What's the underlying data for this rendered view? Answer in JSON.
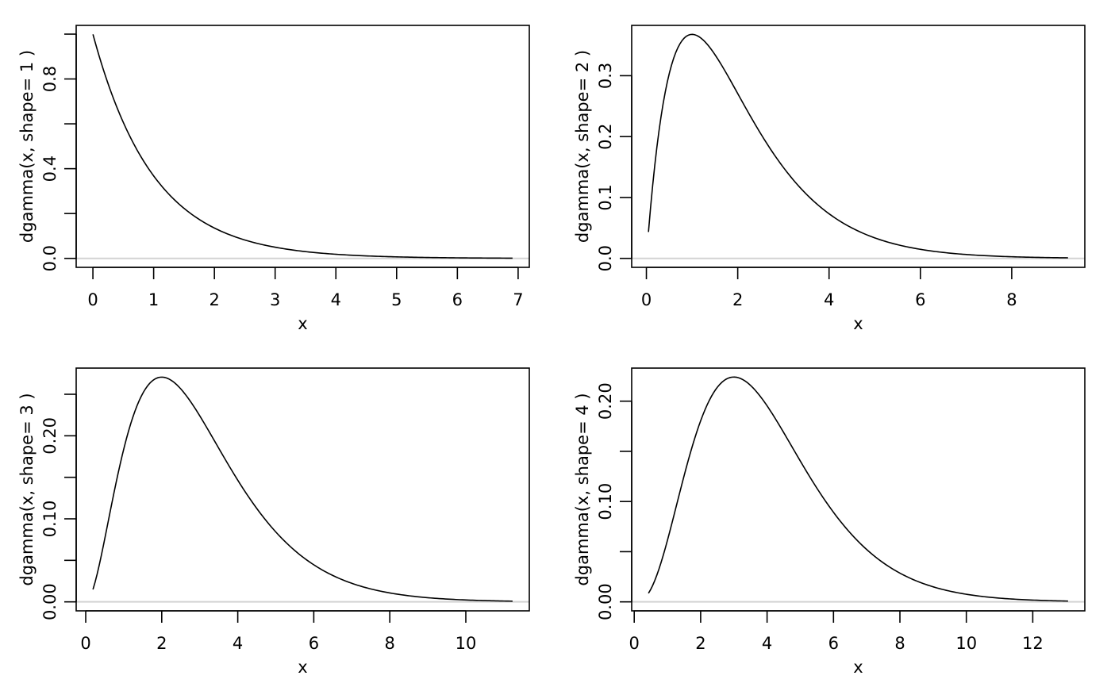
{
  "chart_data": [
    {
      "type": "line",
      "title": "",
      "xlabel": "x",
      "ylabel": "dgamma(x, shape= 1 )",
      "function": "gamma density",
      "shape": 1,
      "rate": 1,
      "x_range": [
        0.001,
        6.908
      ],
      "y_range": [
        0,
        0.999
      ],
      "x_ticks": [
        0,
        1,
        2,
        3,
        4,
        5,
        6,
        7
      ],
      "x_tick_labels": [
        "0",
        "1",
        "2",
        "3",
        "4",
        "5",
        "6",
        "7"
      ],
      "y_ticks": [
        0,
        0.2,
        0.4,
        0.6,
        0.8,
        1.0
      ],
      "y_tick_labels": [
        "0.0",
        "",
        "0.4",
        "",
        "0.8",
        ""
      ],
      "reference_line": {
        "y": 0,
        "color": "#d3d3d3"
      },
      "line_color": "#000000"
    },
    {
      "type": "line",
      "title": "",
      "xlabel": "x",
      "ylabel": "dgamma(x, shape= 2 )",
      "function": "gamma density",
      "shape": 2,
      "rate": 1,
      "x_range": [
        0.0454,
        9.233
      ],
      "y_range": [
        0,
        0.3679
      ],
      "x_ticks": [
        0,
        2,
        4,
        6,
        8
      ],
      "x_tick_labels": [
        "0",
        "2",
        "4",
        "6",
        "8"
      ],
      "y_ticks": [
        0,
        0.1,
        0.2,
        0.3
      ],
      "y_tick_labels": [
        "0.0",
        "0.1",
        "0.2",
        "0.3"
      ],
      "reference_line": {
        "y": 0,
        "color": "#d3d3d3"
      },
      "line_color": "#000000"
    },
    {
      "type": "line",
      "title": "",
      "xlabel": "x",
      "ylabel": "dgamma(x, shape= 3 )",
      "function": "gamma density",
      "shape": 3,
      "rate": 1,
      "x_range": [
        0.1905,
        11.229
      ],
      "y_range": [
        0,
        0.2707
      ],
      "x_ticks": [
        0,
        2,
        4,
        6,
        8,
        10
      ],
      "x_tick_labels": [
        "0",
        "2",
        "4",
        "6",
        "8",
        "10"
      ],
      "y_ticks": [
        0,
        0.05,
        0.1,
        0.15,
        0.2,
        0.25
      ],
      "y_tick_labels": [
        "0.00",
        "",
        "0.10",
        "",
        "0.20",
        ""
      ],
      "reference_line": {
        "y": 0,
        "color": "#d3d3d3"
      },
      "line_color": "#000000"
    },
    {
      "type": "line",
      "title": "",
      "xlabel": "x",
      "ylabel": "dgamma(x, shape= 4 )",
      "function": "gamma density",
      "shape": 4,
      "rate": 1,
      "x_range": [
        0.4286,
        13.062
      ],
      "y_range": [
        0,
        0.224
      ],
      "x_ticks": [
        0,
        2,
        4,
        6,
        8,
        10,
        12
      ],
      "x_tick_labels": [
        "0",
        "2",
        "4",
        "6",
        "8",
        "10",
        "12"
      ],
      "y_ticks": [
        0,
        0.05,
        0.1,
        0.15,
        0.2
      ],
      "y_tick_labels": [
        "0.00",
        "",
        "0.10",
        "",
        "0.20"
      ],
      "reference_line": {
        "y": 0,
        "color": "#d3d3d3"
      },
      "line_color": "#000000"
    }
  ]
}
